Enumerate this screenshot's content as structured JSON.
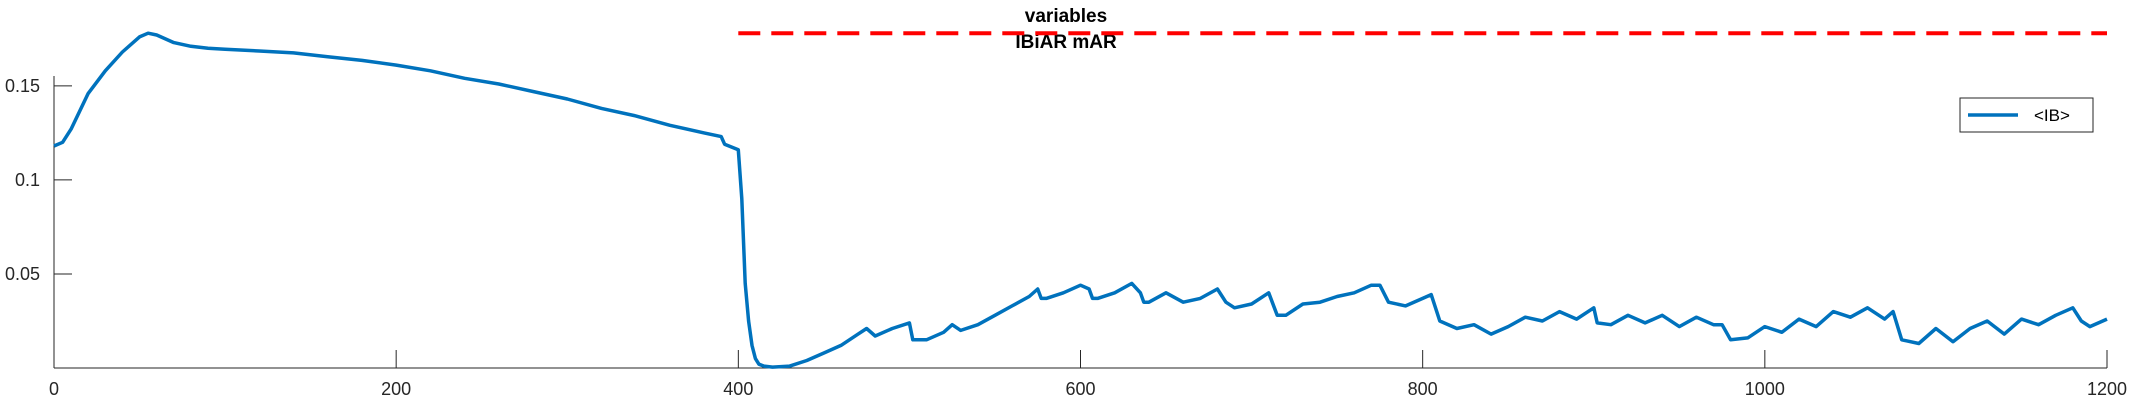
{
  "chart_data": {
    "type": "line",
    "title": "variables",
    "subtitle": "IBiAR mAR",
    "xlabel": "",
    "ylabel": "",
    "xlim": [
      0,
      1200
    ],
    "ylim": [
      0,
      0.185
    ],
    "xticks": [
      0,
      200,
      400,
      600,
      800,
      1000,
      1200
    ],
    "xtick_labels": [
      "0",
      "200",
      "400",
      "600",
      "800",
      "1000",
      "1200"
    ],
    "yticks": [
      0.05,
      0.1,
      0.15
    ],
    "ytick_labels": [
      "0.05",
      "0.1",
      "0.15"
    ],
    "grid": false,
    "legend": {
      "position": "top-right",
      "entries": [
        "<IB>"
      ]
    },
    "series": [
      {
        "name": "<IB>",
        "color": "#0072BD",
        "style": "solid",
        "x": [
          0,
          5,
          10,
          20,
          30,
          40,
          50,
          55,
          60,
          70,
          80,
          90,
          100,
          120,
          140,
          160,
          180,
          200,
          220,
          240,
          260,
          280,
          300,
          320,
          340,
          360,
          380,
          390,
          392,
          400,
          402,
          404,
          406,
          408,
          410,
          412,
          415,
          420,
          430,
          440,
          450,
          460,
          470,
          475,
          480,
          490,
          500,
          502,
          510,
          520,
          525,
          530,
          540,
          550,
          560,
          570,
          575,
          577,
          580,
          590,
          600,
          605,
          607,
          610,
          620,
          630,
          635,
          637,
          640,
          650,
          660,
          670,
          680,
          685,
          690,
          700,
          710,
          715,
          720,
          730,
          740,
          750,
          760,
          770,
          775,
          780,
          790,
          800,
          805,
          810,
          820,
          830,
          840,
          850,
          860,
          870,
          880,
          890,
          900,
          902,
          910,
          920,
          930,
          940,
          950,
          960,
          970,
          975,
          980,
          990,
          1000,
          1010,
          1020,
          1030,
          1040,
          1050,
          1060,
          1070,
          1075,
          1080,
          1090,
          1100,
          1110,
          1120,
          1130,
          1140,
          1150,
          1160,
          1170,
          1180,
          1185,
          1190,
          1200
        ],
        "values": [
          0.118,
          0.12,
          0.127,
          0.146,
          0.158,
          0.168,
          0.176,
          0.178,
          0.177,
          0.173,
          0.171,
          0.17,
          0.1695,
          0.1685,
          0.1675,
          0.1655,
          0.1635,
          0.161,
          0.158,
          0.154,
          0.151,
          0.147,
          0.143,
          0.138,
          0.134,
          0.129,
          0.125,
          0.123,
          0.119,
          0.116,
          0.09,
          0.045,
          0.025,
          0.012,
          0.005,
          0.002,
          0.001,
          0.0005,
          0.001,
          0.004,
          0.008,
          0.012,
          0.018,
          0.021,
          0.017,
          0.021,
          0.024,
          0.015,
          0.015,
          0.019,
          0.023,
          0.02,
          0.023,
          0.028,
          0.033,
          0.038,
          0.042,
          0.037,
          0.037,
          0.04,
          0.044,
          0.042,
          0.037,
          0.037,
          0.04,
          0.045,
          0.04,
          0.035,
          0.035,
          0.04,
          0.035,
          0.037,
          0.042,
          0.035,
          0.032,
          0.034,
          0.04,
          0.028,
          0.028,
          0.034,
          0.035,
          0.038,
          0.04,
          0.044,
          0.044,
          0.035,
          0.033,
          0.037,
          0.039,
          0.025,
          0.021,
          0.023,
          0.018,
          0.022,
          0.027,
          0.025,
          0.03,
          0.026,
          0.032,
          0.024,
          0.023,
          0.028,
          0.024,
          0.028,
          0.022,
          0.027,
          0.023,
          0.023,
          0.015,
          0.016,
          0.022,
          0.019,
          0.026,
          0.022,
          0.03,
          0.027,
          0.032,
          0.026,
          0.03,
          0.015,
          0.013,
          0.021,
          0.014,
          0.021,
          0.025,
          0.018,
          0.026,
          0.023,
          0.028,
          0.032,
          0.025,
          0.022,
          0.026
        ]
      },
      {
        "name": "",
        "color": "#FF0000",
        "style": "dashed",
        "x": [
          400,
          1200
        ],
        "values": [
          0.178,
          0.178
        ]
      }
    ]
  }
}
